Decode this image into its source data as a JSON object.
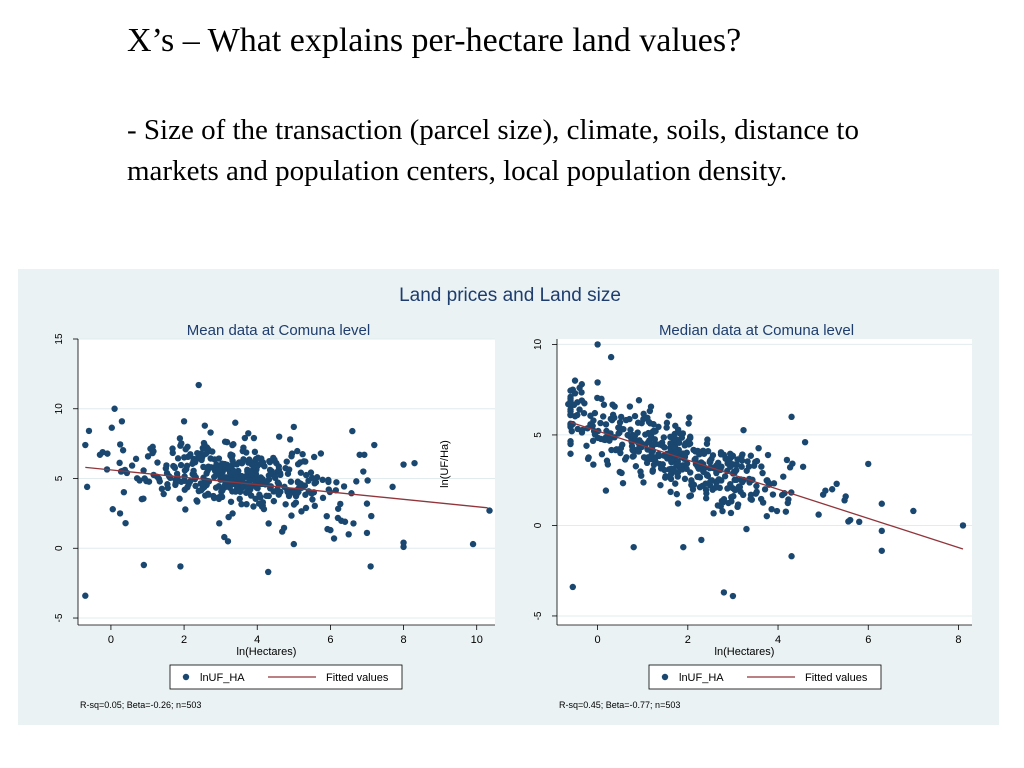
{
  "slide": {
    "title": "X’s – What explains per-hectare land values?",
    "body": "- Size of the transaction (parcel size), climate, soils, distance to markets and population centers, local population density."
  },
  "figure_title": "Land prices and Land size",
  "colors": {
    "background": "#eaf2f3",
    "marker": "#1a476f",
    "fit_line": "#90353b",
    "title_text": "#1e3d6e"
  },
  "chart_data": [
    {
      "type": "scatter",
      "title": "Mean data at Comuna level",
      "xlabel": "ln(Hectares)",
      "ylabel": "",
      "xlim": [
        -0.9,
        10.5
      ],
      "ylim": [
        -5.5,
        15
      ],
      "xticks": [
        0,
        2,
        4,
        6,
        8,
        10
      ],
      "yticks": [
        -5,
        0,
        5,
        10,
        15
      ],
      "grid": true,
      "legend": {
        "position": "bottom",
        "entries": [
          "lnUF_HA",
          "Fitted values"
        ]
      },
      "note": "R-sq=0.05; Beta=-0.26; n=503",
      "fit": {
        "x": [
          -0.7,
          10.3
        ],
        "y": [
          5.8,
          2.9
        ]
      },
      "cloud": {
        "n": 420,
        "x_center": 3.4,
        "x_sd": 1.35,
        "y_intercept": 6.1,
        "y_slope": -0.28,
        "y_sd": 1.2
      },
      "points": [
        [
          -0.7,
          7.4
        ],
        [
          -0.65,
          4.4
        ],
        [
          -0.7,
          -3.4
        ],
        [
          -0.3,
          6.7
        ],
        [
          0.1,
          10.0
        ],
        [
          0.3,
          9.1
        ],
        [
          0.05,
          2.8
        ],
        [
          0.25,
          2.5
        ],
        [
          0.4,
          1.8
        ],
        [
          0.9,
          -1.2
        ],
        [
          1.9,
          -1.3
        ],
        [
          2.4,
          11.7
        ],
        [
          3.1,
          0.8
        ],
        [
          3.2,
          0.5
        ],
        [
          4.3,
          -1.7
        ],
        [
          5.0,
          0.3
        ],
        [
          6.0,
          1.3
        ],
        [
          6.1,
          0.7
        ],
        [
          6.5,
          1.0
        ],
        [
          7.1,
          -1.3
        ],
        [
          6.6,
          8.4
        ],
        [
          7.2,
          7.4
        ],
        [
          8.0,
          6.0
        ],
        [
          8.0,
          0.4
        ],
        [
          8.0,
          0.1
        ],
        [
          8.3,
          6.1
        ],
        [
          7.7,
          4.4
        ],
        [
          9.9,
          0.3
        ],
        [
          10.35,
          2.7
        ],
        [
          7.0,
          1.1
        ],
        [
          6.8,
          6.7
        ],
        [
          6.9,
          5.5
        ],
        [
          7.0,
          3.2
        ],
        [
          6.4,
          1.9
        ],
        [
          5.9,
          2.3
        ],
        [
          2.0,
          9.1
        ],
        [
          3.4,
          9.0
        ],
        [
          4.6,
          8.0
        ],
        [
          5.0,
          8.7
        ],
        [
          4.9,
          7.8
        ]
      ]
    },
    {
      "type": "scatter",
      "title": "Median data at Comuna level",
      "xlabel": "ln(Hectares)",
      "ylabel": "ln(UF/Ha)",
      "xlim": [
        -0.9,
        8.3
      ],
      "ylim": [
        -5.5,
        10.3
      ],
      "xticks": [
        0,
        2,
        4,
        6,
        8
      ],
      "yticks": [
        -5,
        0,
        5,
        10
      ],
      "grid": true,
      "legend": {
        "position": "bottom",
        "entries": [
          "lnUF_HA",
          "Fitted values"
        ]
      },
      "note": "R-sq=0.45; Beta=-0.77; n=503",
      "fit": {
        "x": [
          -0.6,
          8.1
        ],
        "y": [
          5.7,
          -1.3
        ]
      },
      "cloud": {
        "n": 420,
        "x_center": 1.7,
        "x_sd": 1.3,
        "y_intercept": 5.1,
        "y_slope": -0.77,
        "y_sd": 1.0
      },
      "points": [
        [
          -0.65,
          6.7
        ],
        [
          -0.6,
          7.0
        ],
        [
          -0.55,
          7.5
        ],
        [
          -0.5,
          7.3
        ],
        [
          -0.45,
          6.8
        ],
        [
          -0.4,
          6.4
        ],
        [
          -0.35,
          7.8
        ],
        [
          -0.3,
          6.2
        ],
        [
          -0.55,
          5.6
        ],
        [
          -0.45,
          6.1
        ],
        [
          -0.6,
          7.1
        ],
        [
          -0.5,
          8.0
        ],
        [
          -0.4,
          7.6
        ],
        [
          -0.35,
          6.9
        ],
        [
          -0.55,
          -3.4
        ],
        [
          0.0,
          10.0
        ],
        [
          0.3,
          9.3
        ],
        [
          0.0,
          7.9
        ],
        [
          0.8,
          -1.2
        ],
        [
          1.9,
          -1.2
        ],
        [
          2.3,
          -0.8
        ],
        [
          2.8,
          -3.7
        ],
        [
          3.0,
          -3.9
        ],
        [
          3.3,
          -0.2
        ],
        [
          4.3,
          6.0
        ],
        [
          4.3,
          -1.7
        ],
        [
          4.6,
          4.6
        ],
        [
          5.3,
          2.3
        ],
        [
          5.5,
          1.6
        ],
        [
          5.6,
          0.3
        ],
        [
          5.8,
          0.2
        ],
        [
          6.0,
          3.4
        ],
        [
          6.3,
          -0.3
        ],
        [
          6.3,
          -1.4
        ],
        [
          6.3,
          1.2
        ],
        [
          7.0,
          0.8
        ],
        [
          8.1,
          0.0
        ],
        [
          5.0,
          1.7
        ],
        [
          4.9,
          0.6
        ],
        [
          5.2,
          2.0
        ]
      ]
    }
  ]
}
